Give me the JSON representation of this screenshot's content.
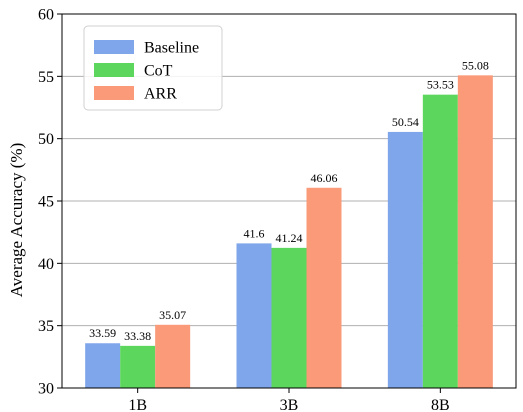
{
  "chart_data": {
    "type": "bar",
    "categories": [
      "1B",
      "3B",
      "8B"
    ],
    "series": [
      {
        "name": "Baseline",
        "values": [
          33.59,
          41.6,
          50.54
        ],
        "color": "#7fa6ea"
      },
      {
        "name": "CoT",
        "values": [
          33.38,
          41.24,
          53.53
        ],
        "color": "#5cd65c"
      },
      {
        "name": "ARR",
        "values": [
          35.07,
          46.06,
          55.08
        ],
        "color": "#fa9a78"
      }
    ],
    "data_labels": [
      [
        "33.59",
        "33.38",
        "35.07"
      ],
      [
        "41.6",
        "41.24",
        "46.06"
      ],
      [
        "50.54",
        "53.53",
        "55.08"
      ]
    ],
    "ylabel": "Average Accuracy (%)",
    "xlabel": "",
    "ylim": [
      30,
      60
    ],
    "yticks": [
      30,
      35,
      40,
      45,
      50,
      55,
      60
    ],
    "ytick_labels": [
      "30",
      "35",
      "40",
      "45",
      "50",
      "55",
      "60"
    ],
    "grid": "horizontal",
    "legend_position": "top-left"
  }
}
